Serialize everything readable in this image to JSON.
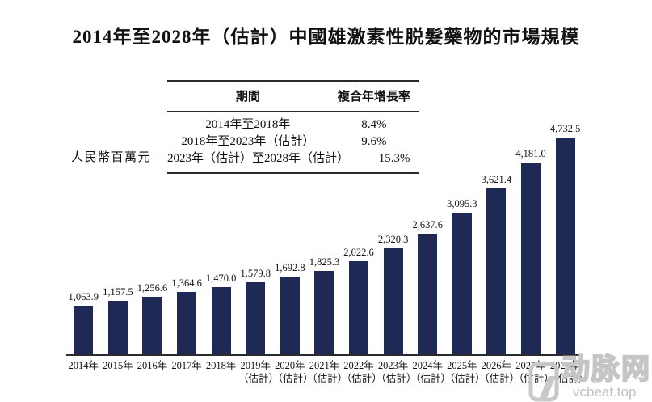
{
  "title": "2014年至2028年（估計）中國雄激素性脱髮藥物的市場規模",
  "y_axis_label": "人民幣百萬元",
  "cagr_table": {
    "headers": [
      "期間",
      "複合年增長率"
    ],
    "rows": [
      {
        "period": "2014年至2018年",
        "cagr": "8.4%"
      },
      {
        "period": "2018年至2023年（估計）",
        "cagr": "9.6%"
      },
      {
        "period": "2023年（估計）至2028年（估計）",
        "cagr": "15.3%"
      }
    ]
  },
  "chart_data": {
    "type": "bar",
    "title": "2014年至2028年（估計）中國雄激素性脱髮藥物的市場規模",
    "ylabel": "人民幣百萬元",
    "ylim": [
      0,
      4800
    ],
    "grid": false,
    "legend": "none",
    "bar_color": "#1e2956",
    "categories": [
      "2014年",
      "2015年",
      "2016年",
      "2017年",
      "2018年",
      "2019年",
      "2020年",
      "2021年",
      "2022年",
      "2023年",
      "2024年",
      "2025年",
      "2026年",
      "2027年",
      "2028年"
    ],
    "category_notes": [
      "",
      "",
      "",
      "",
      "",
      "（估計）",
      "（估計）",
      "（估計）",
      "（估計）",
      "（估計）",
      "（估計）",
      "（估計）",
      "（估計）",
      "（估計）",
      "（估計）"
    ],
    "values": [
      1063.9,
      1157.5,
      1256.6,
      1364.6,
      1470.0,
      1579.8,
      1692.8,
      1825.3,
      2022.6,
      2320.3,
      2637.6,
      3095.3,
      3621.4,
      4181.0,
      4732.5
    ],
    "value_labels": [
      "1,063.9",
      "1,157.5",
      "1,256.6",
      "1,364.6",
      "1,470.0",
      "1,579.8",
      "1,692.8",
      "1,825.3",
      "2,022.6",
      "2,320.3",
      "2,637.6",
      "3,095.3",
      "3,621.4",
      "4,181.0",
      "4,732.5"
    ]
  },
  "watermark": {
    "brand": "动脉网",
    "domain": "vcbeat.top",
    "color": "#c5c5c5"
  }
}
